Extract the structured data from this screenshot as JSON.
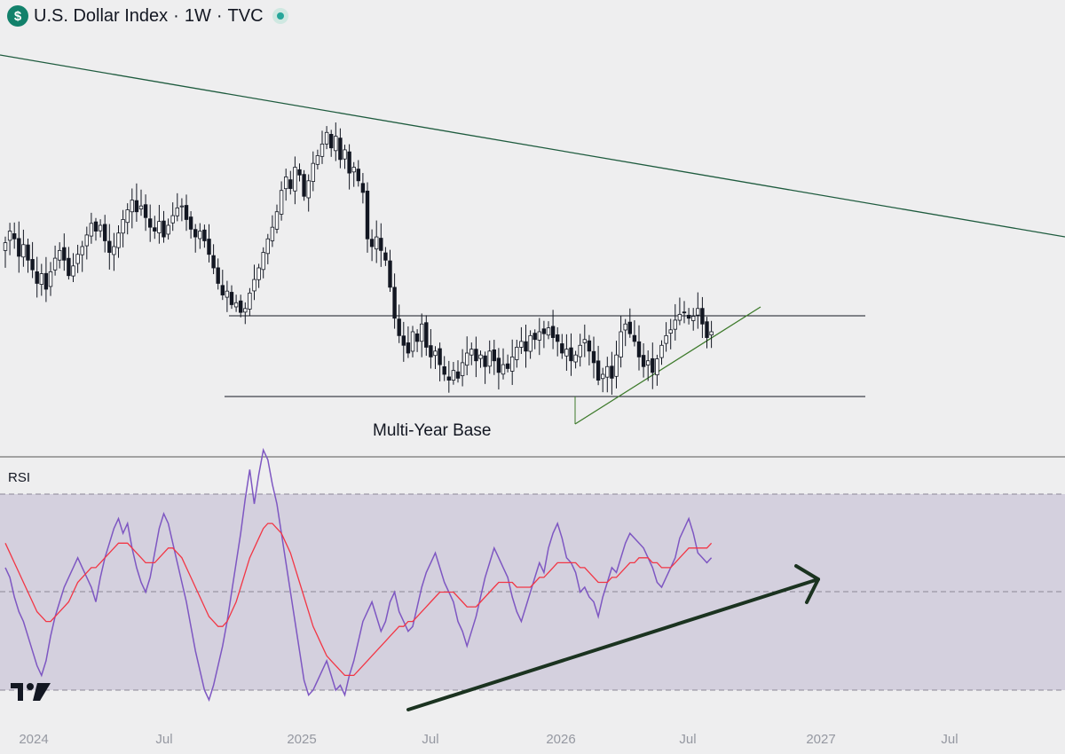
{
  "header": {
    "title": "U.S. Dollar Index",
    "interval": "1W",
    "source": "TVC",
    "separator": "·",
    "symbol_icon": "$",
    "status": "market-open-dot"
  },
  "colors": {
    "background": "#eeeeef",
    "up_candle": "#ffffff",
    "down_candle": "#131722",
    "trendline": "#1e5b3e",
    "support_line": "#131722",
    "rising_trendline": "#3d7a2b",
    "rsi_line": "#7e57c2",
    "rsi_ma": "#f23645",
    "rsi_band": "#d4d0de",
    "arrow": "#1b3320"
  },
  "annotation": "Multi-Year Base",
  "rsi_label": "RSI",
  "watermark": "TradingView-logo",
  "chart_data": [
    {
      "type": "candlestick",
      "title": "U.S. Dollar Index · 1W · TVC",
      "xaxis_ticks": [
        "2024",
        "Jul",
        "2025",
        "Jul",
        "2026",
        "Jul",
        "2027",
        "Jul"
      ],
      "xrange": [
        "2023-11",
        "2027-12"
      ],
      "candles_close": [
        104.0,
        104.6,
        104.2,
        103.3,
        103.9,
        103.1,
        102.6,
        101.9,
        102.4,
        101.6,
        102.5,
        103.2,
        103.6,
        103.1,
        102.3,
        102.8,
        103.4,
        103.8,
        104.4,
        105.0,
        104.6,
        104.9,
        104.1,
        103.5,
        103.8,
        104.5,
        105.2,
        105.7,
        106.2,
        105.6,
        105.9,
        105.3,
        104.8,
        104.6,
        105.1,
        104.3,
        104.9,
        105.4,
        105.8,
        105.9,
        105.2,
        104.7,
        104.3,
        104.6,
        104.1,
        103.4,
        102.7,
        101.9,
        101.3,
        101.5,
        100.8,
        100.9,
        100.4,
        100.6,
        101.4,
        102.1,
        102.7,
        103.5,
        104.2,
        104.8,
        105.6,
        106.7,
        107.4,
        106.8,
        107.9,
        107.5,
        106.4,
        107.2,
        108.1,
        108.5,
        109.1,
        109.7,
        108.9,
        109.5,
        108.3,
        108.8,
        107.6,
        107.9,
        107.2,
        106.6,
        104.2,
        103.8,
        104.3,
        103.6,
        103.1,
        101.7,
        100.1,
        99.2,
        98.7,
        98.3,
        99.4,
        98.9,
        99.8,
        98.6,
        98.1,
        98.4,
        97.7,
        97.2,
        96.9,
        97.4,
        97.0,
        97.8,
        98.3,
        98.5,
        97.9,
        98.2,
        97.6,
        98.4,
        97.9,
        97.3,
        97.7,
        97.5,
        98.1,
        98.6,
        98.9,
        98.4,
        99.2,
        99.0,
        99.4,
        99.3,
        99.6,
        99.1,
        98.9,
        98.3,
        98.5,
        97.9,
        98.2,
        98.7,
        99.0,
        98.4,
        97.8,
        96.9,
        97.2,
        97.6,
        97.0,
        98.2,
        99.4,
        99.8,
        99.3,
        98.9,
        98.1,
        97.6,
        97.9,
        97.3,
        98.0,
        98.7,
        99.2,
        99.5,
        100.0,
        100.3,
        100.4,
        100.1,
        100.2,
        100.6,
        99.8,
        99.1,
        99.4
      ],
      "horizontal_lines": [
        99.7,
        96.9
      ],
      "long_trendline": {
        "start": [
          "2023-11",
          110.8
        ],
        "end": [
          "2027-12",
          103.2
        ]
      },
      "rising_trendline": {
        "start": [
          "2026-01",
          96.4
        ],
        "end": [
          "2026-09",
          100.0
        ]
      },
      "annotation": "Multi-Year Base"
    },
    {
      "type": "line",
      "title": "RSI",
      "levels": [
        70,
        50,
        30
      ],
      "ylim": [
        25,
        80
      ],
      "series": [
        {
          "values": [
            55,
            53,
            49,
            46,
            44,
            41,
            38,
            35,
            33,
            36,
            41,
            45,
            48,
            51,
            53,
            55,
            57,
            55,
            53,
            51,
            48,
            53,
            57,
            60,
            63,
            65,
            62,
            64,
            59,
            55,
            52,
            50,
            53,
            58,
            63,
            66,
            64,
            60,
            56,
            52,
            48,
            43,
            38,
            34,
            30,
            28,
            31,
            35,
            39,
            44,
            50,
            56,
            62,
            69,
            75,
            68,
            74,
            79,
            77,
            72,
            68,
            62,
            56,
            50,
            44,
            38,
            32,
            29,
            30,
            32,
            34,
            36,
            33,
            30,
            31,
            29,
            33,
            36,
            40,
            44,
            46,
            48,
            45,
            42,
            44,
            48,
            50,
            46,
            44,
            42,
            43,
            47,
            51,
            54,
            56,
            58,
            55,
            52,
            50,
            48,
            44,
            42,
            39,
            42,
            45,
            49,
            53,
            56,
            59,
            57,
            55,
            53,
            49,
            46,
            44,
            47,
            50,
            53,
            56,
            54,
            59,
            62,
            64,
            61,
            57,
            56,
            54,
            50,
            51,
            49,
            48,
            45,
            49,
            52,
            55,
            54,
            57,
            60,
            62,
            61,
            60,
            59,
            57,
            55,
            52,
            51,
            53,
            55,
            57,
            61,
            63,
            65,
            62,
            58,
            57,
            56,
            57
          ]
        },
        {
          "values": [
            60,
            58,
            56,
            54,
            52,
            50,
            48,
            46,
            45,
            44,
            44,
            45,
            46,
            47,
            48,
            50,
            52,
            53,
            54,
            55,
            55,
            56,
            57,
            58,
            59,
            60,
            60,
            60,
            59,
            58,
            57,
            56,
            56,
            56,
            57,
            58,
            59,
            59,
            58,
            57,
            55,
            53,
            51,
            49,
            47,
            45,
            44,
            43,
            43,
            44,
            46,
            48,
            51,
            54,
            57,
            59,
            61,
            63,
            64,
            64,
            63,
            62,
            60,
            58,
            55,
            52,
            49,
            46,
            43,
            41,
            39,
            37,
            36,
            35,
            34,
            33,
            33,
            33,
            34,
            35,
            36,
            37,
            38,
            39,
            40,
            41,
            42,
            43,
            43,
            44,
            44,
            45,
            46,
            47,
            48,
            49,
            50,
            50,
            50,
            50,
            49,
            48,
            47,
            47,
            47,
            48,
            49,
            50,
            51,
            52,
            52,
            52,
            52,
            51,
            51,
            51,
            51,
            52,
            53,
            53,
            54,
            55,
            56,
            56,
            56,
            56,
            56,
            55,
            55,
            54,
            53,
            52,
            52,
            52,
            53,
            53,
            54,
            55,
            56,
            56,
            57,
            57,
            57,
            56,
            56,
            55,
            55,
            55,
            56,
            57,
            58,
            59,
            59,
            59,
            59,
            59,
            60
          ]
        }
      ],
      "annotation": "rising-arrow"
    }
  ]
}
